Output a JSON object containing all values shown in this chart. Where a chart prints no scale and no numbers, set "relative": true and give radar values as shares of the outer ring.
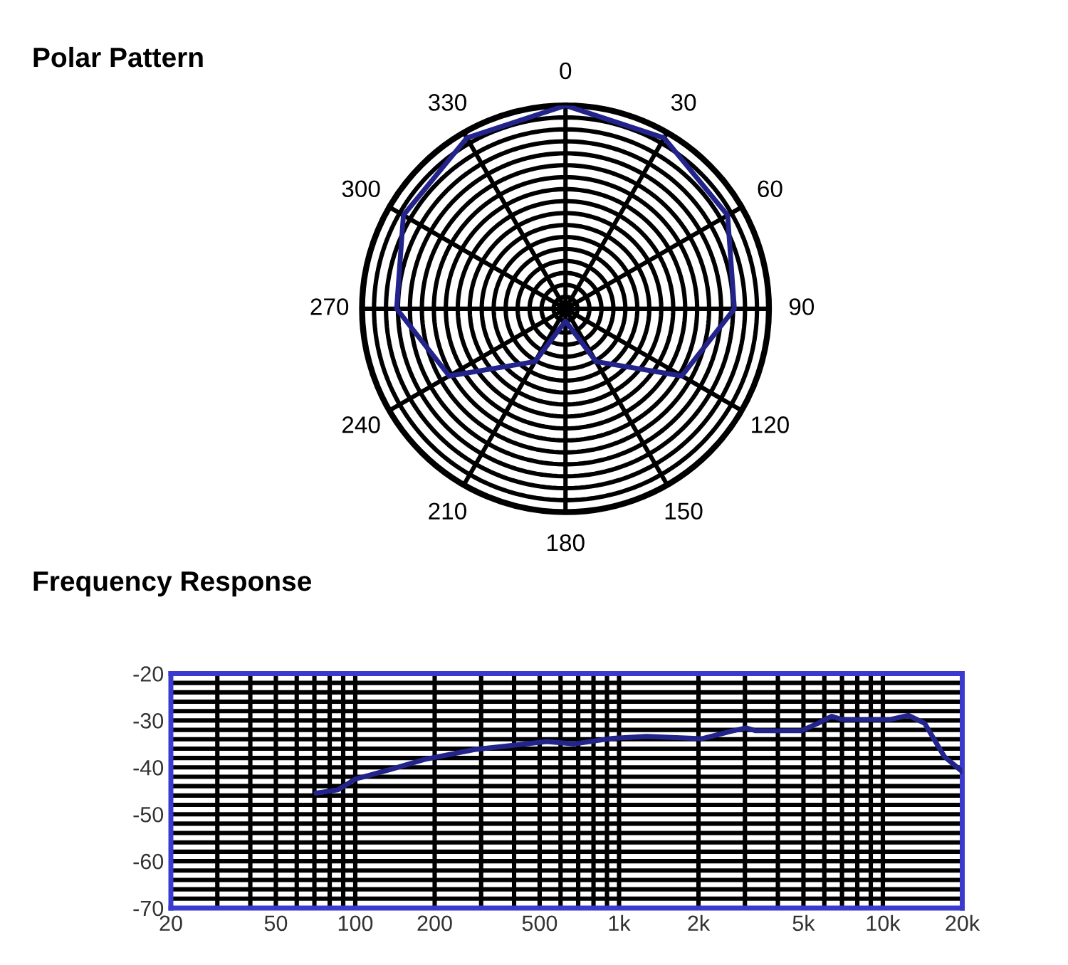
{
  "chart_data": [
    {
      "type": "radar",
      "title": "Polar Pattern",
      "categories": [
        "0",
        "30",
        "60",
        "90",
        "120",
        "150",
        "180",
        "210",
        "240",
        "270",
        "300",
        "330"
      ],
      "relative": true,
      "grid": true,
      "series": [
        {
          "color": "#23238c",
          "values": [
            1.0,
            0.97,
            0.92,
            0.83,
            0.66,
            0.3,
            0.06,
            0.3,
            0.66,
            0.83,
            0.92,
            0.97
          ]
        }
      ]
    },
    {
      "type": "line",
      "title": "Frequency Response",
      "log": "x",
      "grid": true,
      "xlim": [
        20,
        20000
      ],
      "ylim": [
        -70,
        -20
      ],
      "xticks": [
        20,
        50,
        100,
        200,
        500,
        {
          "value": 1000,
          "label": "1k"
        },
        {
          "value": 2000,
          "label": "2k"
        },
        {
          "value": 5000,
          "label": "5k"
        },
        {
          "value": 10000,
          "label": "10k"
        },
        {
          "value": 20000,
          "label": "20k"
        }
      ],
      "yticks": [
        -20,
        -30,
        -40,
        -50,
        -60,
        -70
      ],
      "series": [
        {
          "color": "#23238c",
          "x": [
            71,
            86,
            100,
            137,
            183,
            283,
            530,
            675,
            948,
            1270,
            2057,
            2620,
            3030,
            3300,
            4900,
            5680,
            6410,
            6990,
            10640,
            12500,
            14400,
            17100,
            20000
          ],
          "values": [
            -45.5,
            -44.8,
            -42.5,
            -40.4,
            -38.3,
            -36.2,
            -34.5,
            -35,
            -33.8,
            -33.4,
            -33.9,
            -32.4,
            -31.6,
            -32.2,
            -32.2,
            -30.6,
            -29.1,
            -29.8,
            -29.8,
            -28.9,
            -30.6,
            -37.7,
            -40.9
          ]
        }
      ]
    }
  ]
}
